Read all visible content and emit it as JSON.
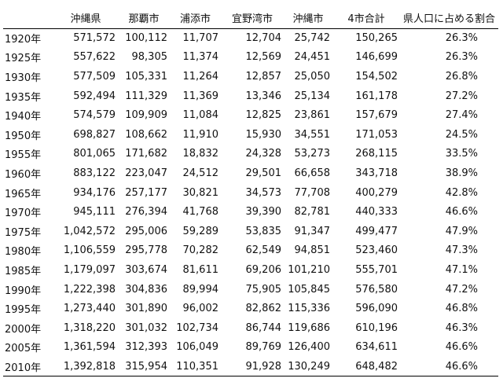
{
  "table": {
    "headers": [
      "",
      "沖縄県",
      "那覇市",
      "浦添市",
      "宜野湾市",
      "沖縄市",
      "4市合計",
      "県人口に占める割合"
    ],
    "rows": [
      [
        "1920年",
        "571,572",
        "100,112",
        "11,707",
        "12,704",
        "25,742",
        "150,265",
        "26.3%"
      ],
      [
        "1925年",
        "557,622",
        "98,305",
        "11,374",
        "12,569",
        "24,451",
        "146,699",
        "26.3%"
      ],
      [
        "1930年",
        "577,509",
        "105,331",
        "11,264",
        "12,857",
        "25,050",
        "154,502",
        "26.8%"
      ],
      [
        "1935年",
        "592,494",
        "111,329",
        "11,369",
        "13,346",
        "25,134",
        "161,178",
        "27.2%"
      ],
      [
        "1940年",
        "574,579",
        "109,909",
        "11,084",
        "12,825",
        "23,861",
        "157,679",
        "27.4%"
      ],
      [
        "1950年",
        "698,827",
        "108,662",
        "11,910",
        "15,930",
        "34,551",
        "171,053",
        "24.5%"
      ],
      [
        "1955年",
        "801,065",
        "171,682",
        "18,832",
        "24,328",
        "53,273",
        "268,115",
        "33.5%"
      ],
      [
        "1960年",
        "883,122",
        "223,047",
        "24,512",
        "29,501",
        "66,658",
        "343,718",
        "38.9%"
      ],
      [
        "1965年",
        "934,176",
        "257,177",
        "30,821",
        "34,573",
        "77,708",
        "400,279",
        "42.8%"
      ],
      [
        "1970年",
        "945,111",
        "276,394",
        "41,768",
        "39,390",
        "82,781",
        "440,333",
        "46.6%"
      ],
      [
        "1975年",
        "1,042,572",
        "295,006",
        "59,289",
        "53,835",
        "91,347",
        "499,477",
        "47.9%"
      ],
      [
        "1980年",
        "1,106,559",
        "295,778",
        "70,282",
        "62,549",
        "94,851",
        "523,460",
        "47.3%"
      ],
      [
        "1985年",
        "1,179,097",
        "303,674",
        "81,611",
        "69,206",
        "101,210",
        "555,701",
        "47.1%"
      ],
      [
        "1990年",
        "1,222,398",
        "304,836",
        "89,994",
        "75,905",
        "105,845",
        "576,580",
        "47.2%"
      ],
      [
        "1995年",
        "1,273,440",
        "301,890",
        "96,002",
        "82,862",
        "115,336",
        "596,090",
        "46.8%"
      ],
      [
        "2000年",
        "1,318,220",
        "301,032",
        "102,734",
        "86,744",
        "119,686",
        "610,196",
        "46.3%"
      ],
      [
        "2005年",
        "1,361,594",
        "312,393",
        "106,049",
        "89,769",
        "126,400",
        "634,611",
        "46.6%"
      ],
      [
        "2010年",
        "1,392,818",
        "315,954",
        "110,351",
        "91,928",
        "130,249",
        "648,482",
        "46.6%"
      ]
    ]
  }
}
